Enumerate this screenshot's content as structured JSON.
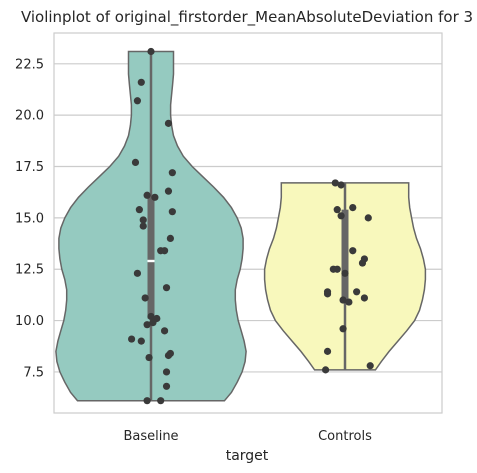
{
  "chart_data": {
    "type": "violin",
    "title": "Violinplot of original_firstorder_MeanAbsoluteDeviation for 3",
    "xlabel": "target",
    "ylabel": "",
    "categories": [
      "Baseline",
      "Controls"
    ],
    "ylim": [
      5.5,
      24.0
    ],
    "yticks": [
      7.5,
      10.0,
      12.5,
      15.0,
      17.5,
      20.0,
      22.5
    ],
    "ytick_labels": [
      "7.5",
      "10.0",
      "12.5",
      "15.0",
      "17.5",
      "20.0",
      "22.5"
    ],
    "grid": true,
    "groups": [
      {
        "category": "Baseline",
        "color": "#95cac0",
        "min": 6.1,
        "max": 23.1,
        "q1": 10.1,
        "median": 12.9,
        "q3": 16.1,
        "density": [
          [
            6.1,
            0.75
          ],
          [
            6.5,
            0.82
          ],
          [
            7.0,
            0.88
          ],
          [
            7.5,
            0.93
          ],
          [
            8.0,
            0.96
          ],
          [
            8.5,
            0.97
          ],
          [
            9.0,
            0.95
          ],
          [
            9.5,
            0.92
          ],
          [
            10.0,
            0.89
          ],
          [
            10.5,
            0.87
          ],
          [
            11.0,
            0.86
          ],
          [
            11.5,
            0.86
          ],
          [
            12.0,
            0.88
          ],
          [
            12.5,
            0.91
          ],
          [
            13.0,
            0.93
          ],
          [
            13.5,
            0.94
          ],
          [
            14.0,
            0.94
          ],
          [
            14.5,
            0.92
          ],
          [
            15.0,
            0.88
          ],
          [
            15.5,
            0.82
          ],
          [
            16.0,
            0.74
          ],
          [
            16.5,
            0.64
          ],
          [
            17.0,
            0.53
          ],
          [
            17.5,
            0.42
          ],
          [
            18.0,
            0.33
          ],
          [
            18.5,
            0.27
          ],
          [
            19.0,
            0.23
          ],
          [
            19.5,
            0.21
          ],
          [
            20.0,
            0.2
          ],
          [
            20.5,
            0.2
          ],
          [
            21.0,
            0.21
          ],
          [
            21.5,
            0.22
          ],
          [
            22.0,
            0.23
          ],
          [
            22.5,
            0.23
          ],
          [
            23.1,
            0.23
          ]
        ],
        "points": [
          [
            0.0,
            23.1
          ],
          [
            -0.05,
            21.6
          ],
          [
            -0.07,
            20.7
          ],
          [
            0.09,
            19.6
          ],
          [
            -0.08,
            17.7
          ],
          [
            0.11,
            17.2
          ],
          [
            0.09,
            16.3
          ],
          [
            -0.02,
            16.1
          ],
          [
            0.02,
            16.0
          ],
          [
            -0.06,
            15.4
          ],
          [
            0.11,
            15.3
          ],
          [
            -0.04,
            14.9
          ],
          [
            -0.04,
            14.6
          ],
          [
            0.1,
            14.0
          ],
          [
            0.05,
            13.4
          ],
          [
            0.07,
            13.4
          ],
          [
            -0.07,
            12.3
          ],
          [
            0.08,
            11.6
          ],
          [
            -0.03,
            11.1
          ],
          [
            0.0,
            10.2
          ],
          [
            0.03,
            10.1
          ],
          [
            0.01,
            9.9
          ],
          [
            -0.02,
            9.8
          ],
          [
            0.07,
            9.5
          ],
          [
            -0.1,
            9.1
          ],
          [
            -0.05,
            9.0
          ],
          [
            0.1,
            8.4
          ],
          [
            0.09,
            8.3
          ],
          [
            -0.01,
            8.2
          ],
          [
            0.08,
            7.5
          ],
          [
            0.08,
            6.8
          ],
          [
            -0.02,
            6.1
          ],
          [
            0.05,
            6.1
          ]
        ]
      },
      {
        "category": "Controls",
        "color": "#f8f8bc",
        "min": 7.6,
        "max": 16.7,
        "q1": 10.9,
        "median": 12.3,
        "q3": 15.4,
        "density": [
          [
            7.6,
            0.31
          ],
          [
            8.0,
            0.37
          ],
          [
            8.5,
            0.45
          ],
          [
            9.0,
            0.54
          ],
          [
            9.5,
            0.63
          ],
          [
            10.0,
            0.71
          ],
          [
            10.5,
            0.76
          ],
          [
            11.0,
            0.79
          ],
          [
            11.5,
            0.81
          ],
          [
            12.0,
            0.82
          ],
          [
            12.5,
            0.82
          ],
          [
            13.0,
            0.8
          ],
          [
            13.5,
            0.77
          ],
          [
            14.0,
            0.73
          ],
          [
            14.5,
            0.7
          ],
          [
            15.0,
            0.68
          ],
          [
            15.5,
            0.66
          ],
          [
            16.0,
            0.65
          ],
          [
            16.7,
            0.65
          ]
        ],
        "points": [
          [
            -0.05,
            16.7
          ],
          [
            -0.02,
            16.6
          ],
          [
            -0.04,
            15.4
          ],
          [
            0.04,
            15.5
          ],
          [
            -0.02,
            15.1
          ],
          [
            0.12,
            15.0
          ],
          [
            0.04,
            13.4
          ],
          [
            0.1,
            13.0
          ],
          [
            0.09,
            12.8
          ],
          [
            -0.06,
            12.5
          ],
          [
            -0.04,
            12.5
          ],
          [
            0.0,
            12.3
          ],
          [
            -0.09,
            11.4
          ],
          [
            -0.09,
            11.3
          ],
          [
            0.06,
            11.4
          ],
          [
            -0.01,
            11.0
          ],
          [
            0.02,
            10.9
          ],
          [
            0.1,
            11.1
          ],
          [
            -0.01,
            9.6
          ],
          [
            -0.09,
            8.5
          ],
          [
            -0.1,
            7.6
          ],
          [
            0.13,
            7.8
          ]
        ]
      }
    ]
  }
}
